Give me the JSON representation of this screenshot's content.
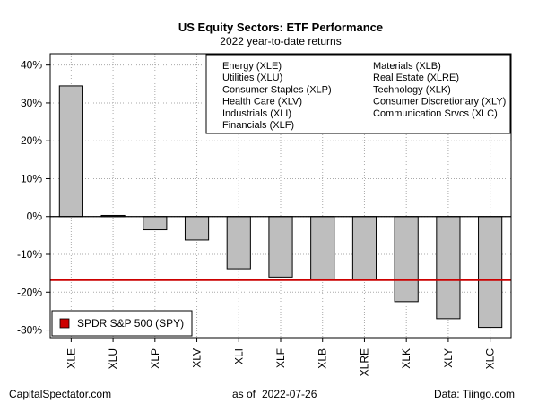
{
  "chart_data": {
    "type": "bar",
    "title": "US Equity Sectors: ETF Performance",
    "subtitle": "2022 year-to-date returns",
    "categories": [
      "XLE",
      "XLU",
      "XLP",
      "XLV",
      "XLI",
      "XLF",
      "XLB",
      "XLRE",
      "XLK",
      "XLY",
      "XLC"
    ],
    "values": [
      34.5,
      0.3,
      -3.5,
      -6.2,
      -13.8,
      -16.0,
      -16.5,
      -16.8,
      -22.5,
      -27.0,
      -29.3
    ],
    "ylim": [
      -32,
      43
    ],
    "yticks": [
      40,
      30,
      20,
      10,
      0,
      -10,
      -20,
      -30
    ],
    "ytick_labels": [
      "40%",
      "30%",
      "20%",
      "10%",
      "0%",
      "-10%",
      "-20%",
      "-30%"
    ],
    "grid": true,
    "bar_color": "#bebebe",
    "reference_line": {
      "label": "SPDR S&P 500 (SPY)",
      "value": -16.8,
      "color": "#cc0000"
    },
    "legend": {
      "placement": "top-right",
      "col1": [
        "Energy (XLE)",
        "Utilities (XLU)",
        "Consumer Staples (XLP)",
        "Health Care (XLV)",
        "Industrials (XLI)",
        "Financials (XLF)"
      ],
      "col2": [
        "Materials (XLB)",
        "Real Estate (XLRE)",
        "Technology (XLK)",
        "Consumer Discretionary (XLY)",
        "Communication Srvcs (XLC)"
      ]
    }
  },
  "footer": {
    "source_left": "CapitalSpectator.com",
    "as_of_prefix": "as of",
    "as_of_date": "2022-07-26",
    "source_right": "Data: Tiingo.com"
  }
}
